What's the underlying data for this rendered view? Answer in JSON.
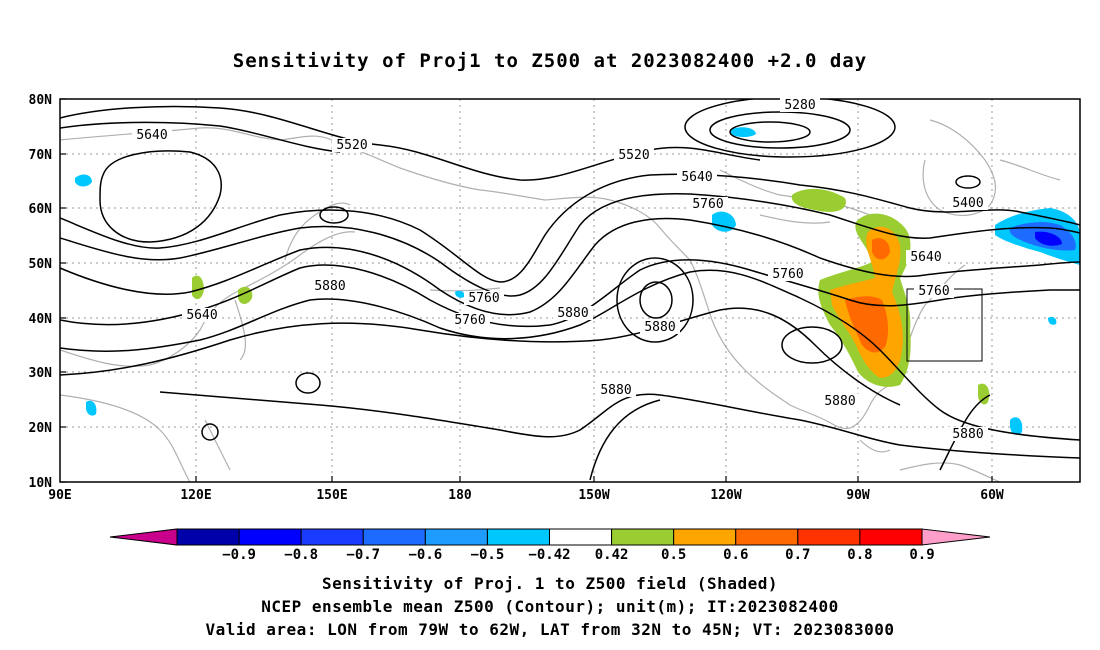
{
  "title": "Sensitivity of Proj1 to Z500 at 2023082400 +2.0 day",
  "map": {
    "lat_labels": [
      "80N",
      "70N",
      "60N",
      "50N",
      "40N",
      "30N",
      "20N",
      "10N"
    ],
    "lon_labels": [
      "90E",
      "120E",
      "150E",
      "180",
      "150W",
      "120W",
      "90W",
      "60W"
    ],
    "lon_range_deg_east": [
      90,
      315
    ],
    "lat_range_deg": [
      10,
      80
    ],
    "grid": "dotted",
    "coastline_color": "#b0b0b0",
    "contour_color": "#000000",
    "contour_labels": [
      "5640",
      "5520",
      "5280",
      "5520",
      "5640",
      "5760",
      "5400",
      "5640",
      "5760",
      "5880",
      "5760",
      "5640",
      "5880",
      "5760",
      "5880",
      "5760",
      "5880",
      "5880",
      "5880"
    ],
    "valid_area_box": {
      "lon": [
        "79W",
        "62W"
      ],
      "lat": [
        "32N",
        "45N"
      ]
    }
  },
  "colorbar": {
    "labels": [
      "-0.9",
      "-0.8",
      "-0.7",
      "-0.6",
      "-0.5",
      "-0.42",
      "0.42",
      "0.5",
      "0.6",
      "0.7",
      "0.8",
      "0.9"
    ],
    "colors": [
      "#0000aa",
      "#0000ff",
      "#1a3cff",
      "#1e6cff",
      "#1e9cff",
      "#00c8ff",
      "#ffffff",
      "#9acd32",
      "#ffa500",
      "#ff6a00",
      "#ff3300",
      "#ff0000"
    ],
    "low_tip_color": "#c8008c",
    "high_tip_color": "#ff9ec8"
  },
  "captions": [
    "Sensitivity of Proj. 1 to Z500 field (Shaded)",
    "NCEP ensemble mean Z500 (Contour); unit(m); IT:2023082400",
    "Valid area: LON from 79W to 62W, LAT from 32N to 45N; VT: 2023083000"
  ]
}
